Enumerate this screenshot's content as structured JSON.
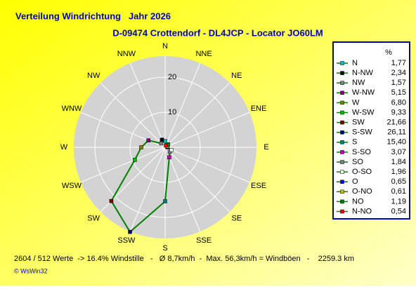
{
  "chart_data": {
    "type": "radar",
    "title": "Verteilung Windrichtung   Jahr 2026",
    "subtitle": "D-09474 Crottendorf - DL4JCP - Locator JO60LM",
    "axis_labels": [
      "N",
      "NNW",
      "NW",
      "WNW",
      "W",
      "WSW",
      "SW",
      "SSW",
      "S",
      "SSE",
      "SE",
      "ESE",
      "E",
      "ENE",
      "NE",
      "NNE"
    ],
    "legend_header": "%",
    "categories": [
      "N",
      "N-NW",
      "NW",
      "W-NW",
      "W",
      "W-SW",
      "SW",
      "S-SW",
      "S",
      "S-SO",
      "SO",
      "O-SO",
      "O",
      "O-NO",
      "NO",
      "N-NO"
    ],
    "values": [
      1.77,
      2.34,
      1.57,
      5.15,
      6.8,
      9.33,
      21.66,
      26.11,
      15.4,
      3.07,
      1.84,
      1.96,
      0.65,
      0.61,
      1.19,
      0.54
    ],
    "value_labels": [
      "1,77",
      "2,34",
      "1,57",
      "5,15",
      "6,80",
      "9,33",
      "21,66",
      "26,11",
      "15,40",
      "3,07",
      "1,84",
      "1,96",
      "0,65",
      "0,61",
      "1,19",
      "0,54"
    ],
    "point_colors": [
      "#00c0c0",
      "#000000",
      "#808080",
      "#800080",
      "#808000",
      "#00c000",
      "#800000",
      "#000080",
      "#008080",
      "#c000c0",
      "#808080",
      "#e0ffe0",
      "#0000ff",
      "#c0c000",
      "#008000",
      "#ff0000"
    ],
    "color": "#008000",
    "ylim": [
      0,
      26
    ],
    "yticks": [
      10,
      20
    ],
    "grid": true,
    "footer": "2604 / 512 Werte  -> 16.4% Windstille   -   Ø 8,7km/h  -  Max. 56,3km/h = Windböen   -    2259.3 km",
    "copyright": "© WsWin32"
  }
}
